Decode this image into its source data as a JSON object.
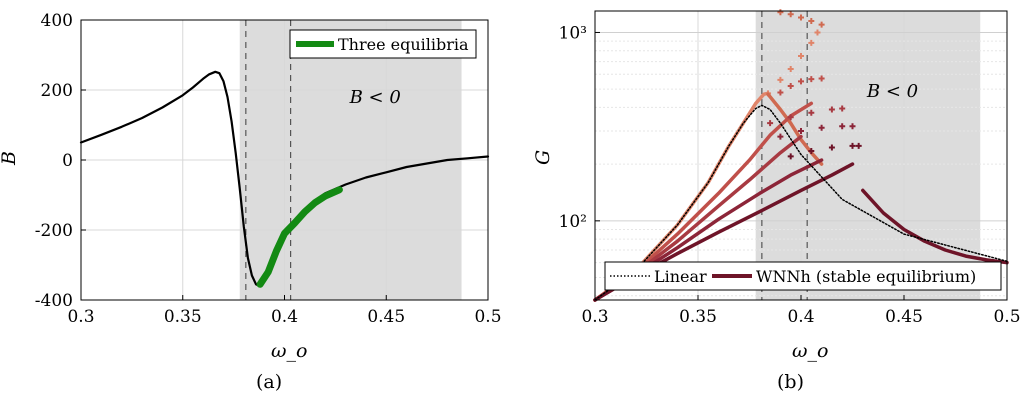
{
  "chart_data": [
    {
      "panel_label": "(a)",
      "type": "line",
      "xlabel": "ω_o",
      "ylabel": "B",
      "xlim": [
        0.3,
        0.5
      ],
      "ylim": [
        -400,
        400
      ],
      "xticks": [
        "0.3",
        "0.35",
        "0.4",
        "0.45",
        "0.5"
      ],
      "yticks": [
        "-400",
        "-200",
        "0",
        "200",
        "400"
      ],
      "grid": true,
      "shaded_region": [
        0.378,
        0.487
      ],
      "dashed_lines": [
        0.381,
        0.403
      ],
      "annotation": "B < 0",
      "series": [
        {
          "color": "#000000",
          "x": [
            0.3,
            0.31,
            0.32,
            0.33,
            0.34,
            0.35,
            0.355,
            0.36,
            0.363,
            0.366,
            0.368,
            0.37,
            0.372,
            0.374,
            0.376,
            0.378,
            0.38,
            0.382,
            0.384,
            0.386,
            0.388,
            0.39,
            0.395,
            0.4,
            0.41,
            0.42,
            0.43,
            0.44,
            0.45,
            0.46,
            0.47,
            0.48,
            0.49,
            0.5
          ],
          "y": [
            50,
            72,
            95,
            120,
            150,
            185,
            207,
            232,
            245,
            252,
            248,
            225,
            180,
            110,
            20,
            -80,
            -190,
            -280,
            -330,
            -355,
            -360,
            -340,
            -270,
            -210,
            -140,
            -95,
            -70,
            -50,
            -35,
            -20,
            -10,
            0,
            5,
            10
          ]
        },
        {
          "name": "Three equilibria",
          "color": "#138a13",
          "x": [
            0.388,
            0.392,
            0.396,
            0.4,
            0.405,
            0.41,
            0.415,
            0.42,
            0.427
          ],
          "y": [
            -355,
            -320,
            -260,
            -210,
            -180,
            -148,
            -122,
            -103,
            -85
          ]
        }
      ]
    },
    {
      "panel_label": "(b)",
      "type": "line",
      "xlabel": "ω_o",
      "ylabel": "G",
      "xlim": [
        0.3,
        0.5
      ],
      "ylim": [
        38,
        1300
      ],
      "yscale": "log",
      "xticks": [
        "0.3",
        "0.35",
        "0.4",
        "0.45",
        "0.5"
      ],
      "yticks": [
        "10²",
        "10³"
      ],
      "grid": true,
      "shaded_region": [
        0.378,
        0.487
      ],
      "dashed_lines": [
        0.381,
        0.403
      ],
      "annotation": "B < 0",
      "legend": [
        "Linear",
        "WNNh (stable equilibrium)"
      ],
      "series": [
        {
          "name": "Linear",
          "style": "dotted",
          "color": "#000000",
          "x": [
            0.3,
            0.32,
            0.34,
            0.355,
            0.365,
            0.372,
            0.378,
            0.381,
            0.385,
            0.39,
            0.4,
            0.42,
            0.45,
            0.5
          ],
          "y": [
            38,
            55,
            95,
            160,
            250,
            330,
            395,
            410,
            390,
            330,
            225,
            130,
            85,
            61
          ]
        },
        {
          "color": "#e0856a",
          "x": [
            0.3,
            0.32,
            0.34,
            0.355,
            0.365,
            0.372,
            0.378,
            0.382,
            0.384
          ],
          "y": [
            38,
            55,
            95,
            160,
            250,
            330,
            420,
            470,
            475
          ],
          "unstable_x": [
            0.384,
            0.39,
            0.395,
            0.4,
            0.405,
            0.408
          ],
          "unstable_y": [
            475,
            560,
            640,
            750,
            880,
            1000
          ]
        },
        {
          "color": "#d06a50",
          "x": [
            0.384,
            0.39,
            0.395,
            0.4,
            0.405,
            0.41
          ],
          "y": [
            470,
            390,
            330,
            270,
            230,
            200
          ],
          "unstable_x": [
            0.39,
            0.395,
            0.4,
            0.405,
            0.41
          ],
          "unstable_y": [
            1280,
            1250,
            1200,
            1150,
            1100
          ]
        },
        {
          "color": "#c0504a",
          "x": [
            0.3,
            0.32,
            0.34,
            0.36,
            0.375,
            0.385,
            0.395,
            0.405
          ],
          "y": [
            38,
            54,
            85,
            140,
            210,
            285,
            360,
            420
          ],
          "unstable_x": [
            0.39,
            0.395,
            0.4,
            0.405,
            0.41
          ],
          "unstable_y": [
            480,
            520,
            550,
            565,
            570
          ]
        },
        {
          "color": "#a83a42",
          "x": [
            0.3,
            0.32,
            0.34,
            0.36,
            0.375,
            0.39,
            0.4
          ],
          "y": [
            38,
            53,
            78,
            120,
            165,
            230,
            280
          ],
          "unstable_x": [
            0.385,
            0.395,
            0.405,
            0.415,
            0.42
          ],
          "unstable_y": [
            330,
            355,
            375,
            390,
            395
          ]
        },
        {
          "color": "#8c2538",
          "x": [
            0.3,
            0.32,
            0.34,
            0.36,
            0.38,
            0.395,
            0.41
          ],
          "y": [
            38,
            52,
            72,
            102,
            140,
            175,
            210
          ],
          "unstable_x": [
            0.39,
            0.4,
            0.41,
            0.42,
            0.425
          ],
          "unstable_y": [
            280,
            300,
            312,
            318,
            318
          ]
        },
        {
          "name": "WNNh (stable equilibrium)",
          "color": "#6e1428",
          "x": [
            0.3,
            0.32,
            0.34,
            0.36,
            0.38,
            0.4,
            0.415,
            0.425
          ],
          "y": [
            38,
            51,
            67,
            87,
            112,
            145,
            175,
            200
          ],
          "unstable_x": [
            0.395,
            0.405,
            0.415,
            0.425,
            0.428
          ],
          "unstable_y": [
            220,
            235,
            245,
            250,
            250
          ]
        },
        {
          "color": "#6e1428",
          "x": [
            0.43,
            0.44,
            0.45,
            0.46,
            0.47,
            0.48,
            0.49,
            0.5
          ],
          "y": [
            145,
            110,
            90,
            78,
            70,
            65,
            62,
            60
          ]
        }
      ]
    }
  ]
}
